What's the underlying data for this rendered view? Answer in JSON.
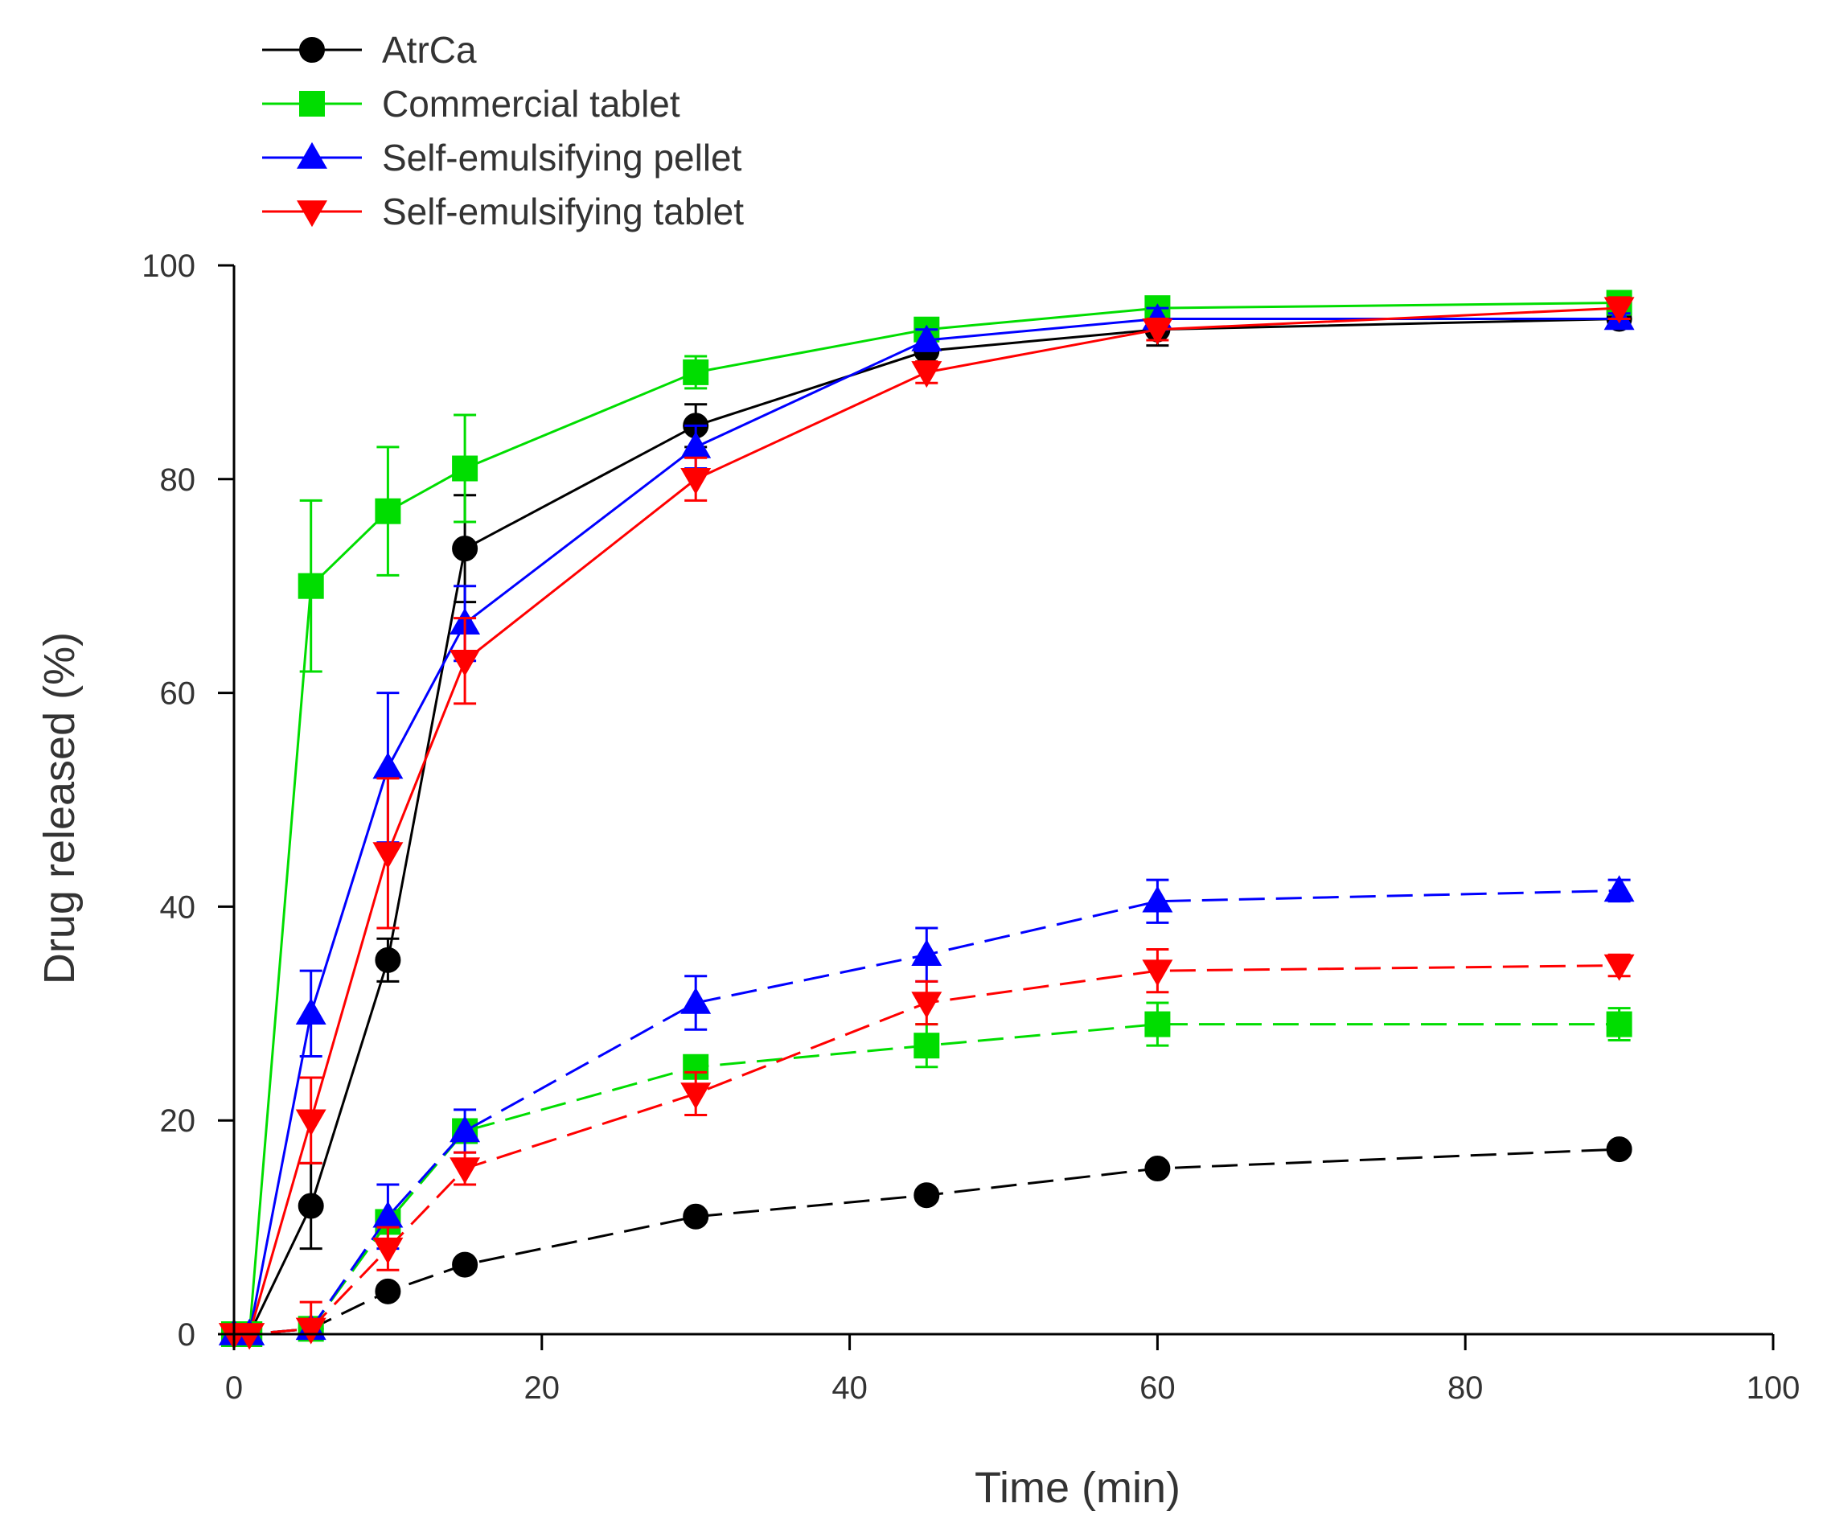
{
  "chart_data": {
    "type": "line",
    "title": "",
    "xlabel": "Time (min)",
    "ylabel": "Drug released (%)",
    "xlim": [
      0,
      100
    ],
    "ylim": [
      0,
      100
    ],
    "xticks": [
      0,
      20,
      40,
      60,
      80,
      100
    ],
    "yticks": [
      0,
      20,
      40,
      60,
      80,
      100
    ],
    "grid": false,
    "legend_position": "top-left",
    "legend": [
      "AtrCa",
      "Commercial tablet",
      "Self-emulsifying pellet",
      "Self-emulsifying tablet"
    ],
    "x": [
      0,
      1,
      5,
      10,
      15,
      30,
      45,
      60,
      90
    ],
    "series": [
      {
        "name": "AtrCa",
        "condition": "solid",
        "color": "#000000",
        "marker": "circle",
        "values": [
          0,
          0,
          12,
          35,
          73.5,
          85,
          92,
          94,
          95
        ],
        "errors": [
          0,
          0,
          4,
          2,
          5,
          2,
          1,
          1.5,
          0.5
        ]
      },
      {
        "name": "Commercial tablet",
        "condition": "solid",
        "color": "#00dd00",
        "marker": "square",
        "values": [
          0,
          0,
          70,
          77,
          81,
          90,
          94,
          96,
          96.5
        ],
        "errors": [
          0,
          0,
          8,
          6,
          5,
          1.5,
          1,
          1,
          1
        ]
      },
      {
        "name": "Self-emulsifying pellet",
        "condition": "solid",
        "color": "#0000ff",
        "marker": "triangle-up",
        "values": [
          0,
          0,
          30,
          53,
          66.5,
          83,
          93,
          95,
          95
        ],
        "errors": [
          0,
          0,
          4,
          7,
          3.5,
          2,
          1,
          1,
          0.5
        ]
      },
      {
        "name": "Self-emulsifying tablet",
        "condition": "solid",
        "color": "#ff0000",
        "marker": "triangle-down",
        "values": [
          0,
          0,
          20,
          45,
          63,
          80,
          90,
          94,
          96
        ],
        "errors": [
          0,
          0,
          4,
          7,
          4,
          2,
          1,
          1,
          1
        ]
      },
      {
        "name": "AtrCa",
        "condition": "dashed",
        "color": "#000000",
        "marker": "circle",
        "values": [
          0,
          0,
          0.5,
          4,
          6.5,
          11,
          13,
          15.5,
          17.3
        ],
        "errors": [
          0,
          0,
          0.5,
          0.5,
          0.5,
          0.5,
          0.5,
          0.5,
          0.5
        ]
      },
      {
        "name": "Commercial tablet",
        "condition": "dashed",
        "color": "#00dd00",
        "marker": "square",
        "values": [
          0,
          0,
          0.5,
          10.5,
          19,
          25,
          27,
          29,
          29
        ],
        "errors": [
          0,
          0,
          0.5,
          1,
          1,
          1,
          2,
          2,
          1.5
        ]
      },
      {
        "name": "Self-emulsifying pellet",
        "condition": "dashed",
        "color": "#0000ff",
        "marker": "triangle-up",
        "values": [
          0,
          0,
          0.5,
          11,
          19,
          31,
          35.5,
          40.5,
          41.5
        ],
        "errors": [
          0,
          0,
          0.5,
          3,
          2,
          2.5,
          2.5,
          2,
          1
        ]
      },
      {
        "name": "Self-emulsifying tablet",
        "condition": "dashed",
        "color": "#ff0000",
        "marker": "triangle-down",
        "values": [
          0,
          0,
          0.5,
          8,
          15.5,
          22.5,
          31,
          34,
          34.5
        ],
        "errors": [
          0,
          0,
          2.5,
          2,
          1.5,
          2,
          2,
          2,
          1
        ]
      }
    ]
  }
}
